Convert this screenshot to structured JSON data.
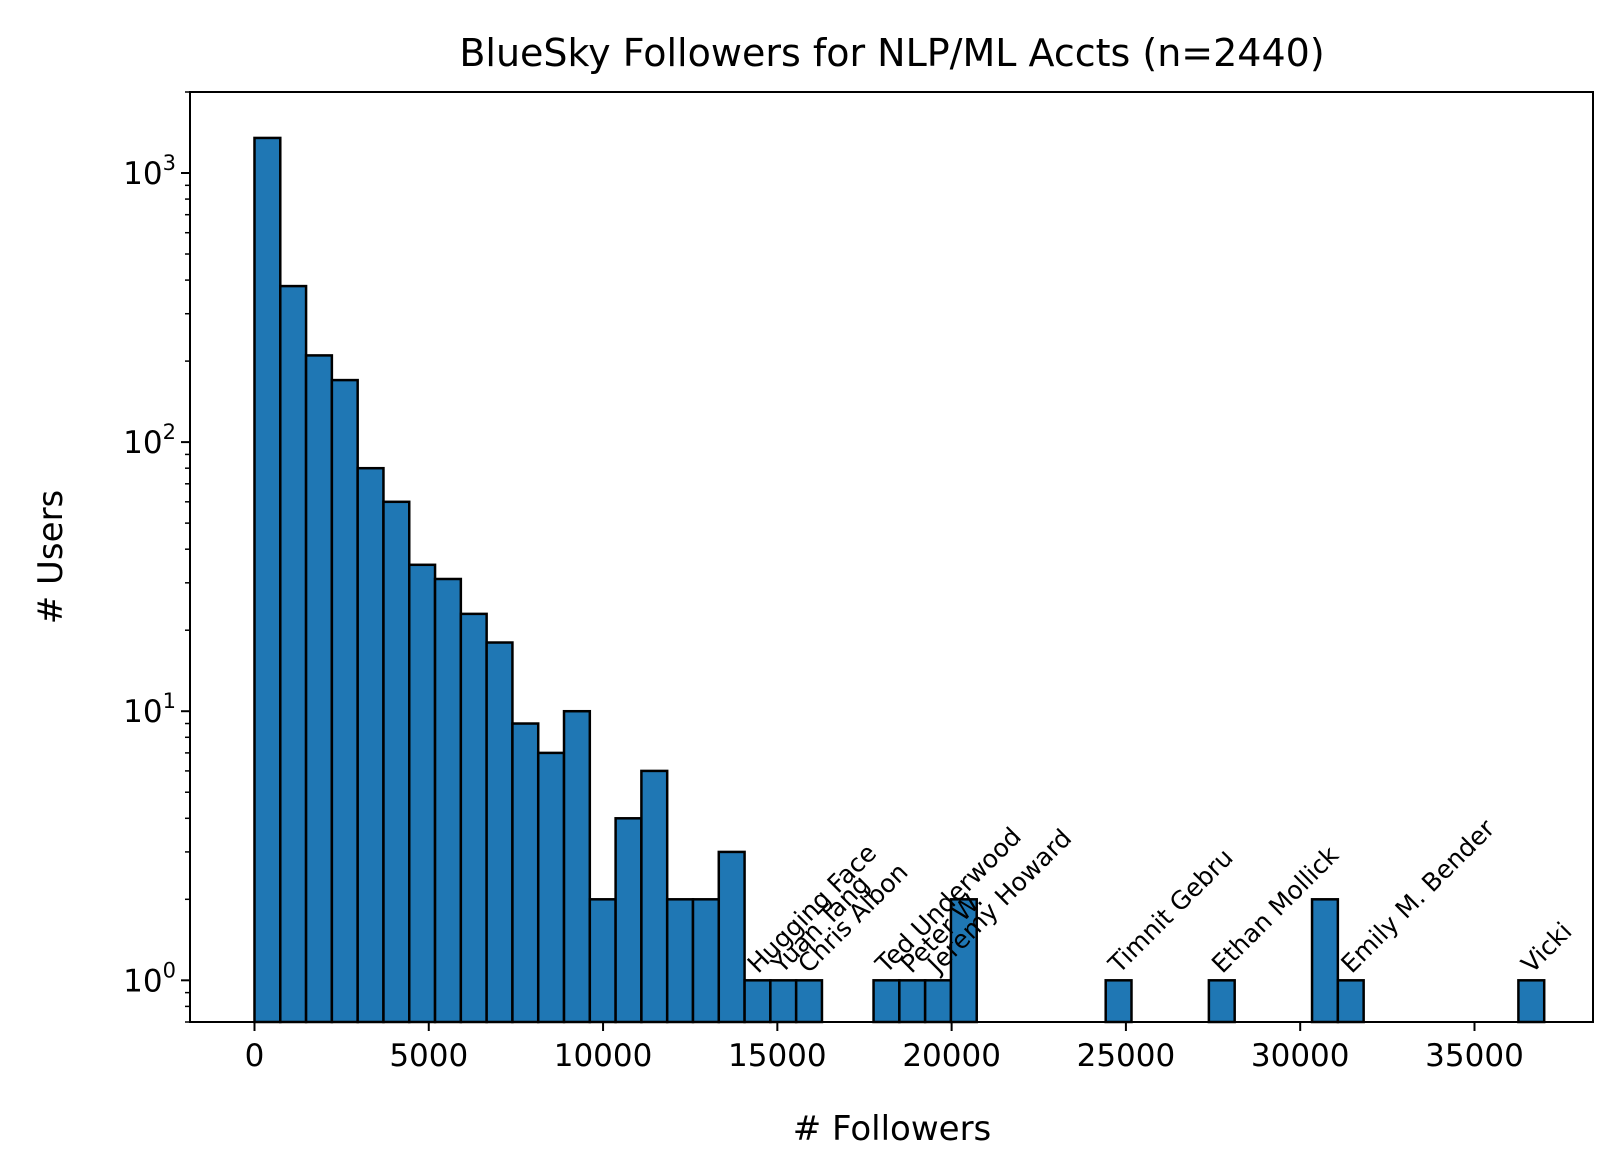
{
  "chart_data": {
    "type": "bar",
    "title": "BlueSky Followers for NLP/ML Accts (n=2440)",
    "xlabel": "# Followers",
    "ylabel": "# Users",
    "yscale": "log",
    "xlim": [
      -1850,
      38400
    ],
    "ylim": [
      0.7,
      2000
    ],
    "xticks": [
      0,
      5000,
      10000,
      15000,
      20000,
      25000,
      30000,
      35000
    ],
    "yticks": [
      {
        "value": 1,
        "base": "10",
        "exp": "0"
      },
      {
        "value": 10,
        "base": "10",
        "exp": "1"
      },
      {
        "value": 100,
        "base": "10",
        "exp": "2"
      },
      {
        "value": 1000,
        "base": "10",
        "exp": "3"
      }
    ],
    "grid": false,
    "bar_color": "#1f77b4",
    "edge_color": "#000000",
    "bin_width": 740,
    "bins": [
      {
        "start": 0,
        "count": 1350
      },
      {
        "start": 740,
        "count": 380
      },
      {
        "start": 1480,
        "count": 210
      },
      {
        "start": 2220,
        "count": 170
      },
      {
        "start": 2960,
        "count": 80
      },
      {
        "start": 3700,
        "count": 60
      },
      {
        "start": 4440,
        "count": 35
      },
      {
        "start": 5180,
        "count": 31
      },
      {
        "start": 5920,
        "count": 23
      },
      {
        "start": 6660,
        "count": 18
      },
      {
        "start": 7400,
        "count": 9
      },
      {
        "start": 8140,
        "count": 7
      },
      {
        "start": 8880,
        "count": 10
      },
      {
        "start": 9620,
        "count": 2
      },
      {
        "start": 10360,
        "count": 4
      },
      {
        "start": 11100,
        "count": 6
      },
      {
        "start": 11840,
        "count": 2
      },
      {
        "start": 12580,
        "count": 2
      },
      {
        "start": 13320,
        "count": 3
      },
      {
        "start": 14060,
        "count": 1
      },
      {
        "start": 14800,
        "count": 1
      },
      {
        "start": 15540,
        "count": 1
      },
      {
        "start": 17760,
        "count": 1
      },
      {
        "start": 18500,
        "count": 1
      },
      {
        "start": 19240,
        "count": 1
      },
      {
        "start": 19980,
        "count": 2
      },
      {
        "start": 24420,
        "count": 1
      },
      {
        "start": 27380,
        "count": 1
      },
      {
        "start": 30340,
        "count": 2
      },
      {
        "start": 31080,
        "count": 1
      },
      {
        "start": 36260,
        "count": 1
      }
    ],
    "annotations": [
      {
        "text": "Hugging Face",
        "x": 14560,
        "y": 1
      },
      {
        "text": "Yuan Tang",
        "x": 15250,
        "y": 1
      },
      {
        "text": "Chris Albon",
        "x": 16010,
        "y": 1
      },
      {
        "text": "Ted Underwood",
        "x": 18240,
        "y": 1
      },
      {
        "text": "Peter W.",
        "x": 18960,
        "y": 1
      },
      {
        "text": "Jeremy Howard",
        "x": 19730,
        "y": 1
      },
      {
        "text": "Timnit Gebru",
        "x": 24920,
        "y": 1
      },
      {
        "text": "Ethan Mollick",
        "x": 27880,
        "y": 1
      },
      {
        "text": "Emily M. Bender",
        "x": 31590,
        "y": 1
      },
      {
        "text": "Vicki",
        "x": 36760,
        "y": 1
      }
    ]
  }
}
